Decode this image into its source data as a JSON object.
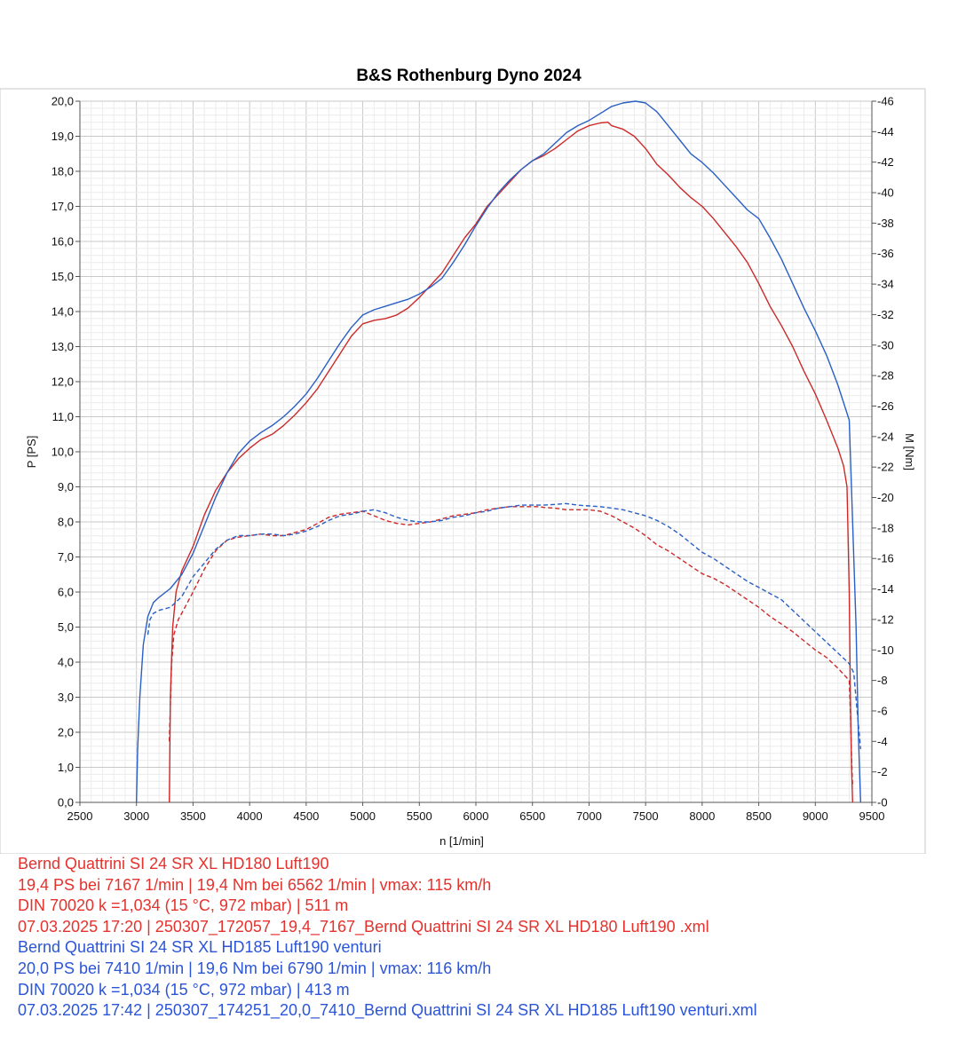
{
  "chart_data": {
    "type": "line",
    "title": "B&S Rothenburg Dyno 2024",
    "xlabel": "n [1/min]",
    "ylabel_left": "P [PS]",
    "ylabel_right": "M [Nm]",
    "xlim": [
      2500,
      9500
    ],
    "ylim_left": [
      0,
      20
    ],
    "ylim_right": [
      0,
      46
    ],
    "x_ticks": [
      "2500",
      "3000",
      "3500",
      "4000",
      "4500",
      "5000",
      "5500",
      "6000",
      "6500",
      "7000",
      "7500",
      "8000",
      "8500",
      "9000",
      "9500"
    ],
    "y_left_ticks": [
      "0,0",
      "1,0",
      "2,0",
      "3,0",
      "4,0",
      "5,0",
      "6,0",
      "7,0",
      "8,0",
      "9,0",
      "10,0",
      "11,0",
      "12,0",
      "13,0",
      "14,0",
      "15,0",
      "16,0",
      "17,0",
      "18,0",
      "19,0",
      "20,0"
    ],
    "y_right_ticks": [
      "0",
      "2",
      "4",
      "6",
      "8",
      "10",
      "12",
      "14",
      "16",
      "18",
      "20",
      "22",
      "24",
      "26",
      "28",
      "30",
      "32",
      "34",
      "36",
      "38",
      "40",
      "42",
      "44",
      "46"
    ],
    "grid": true,
    "series": [
      {
        "name": "Bernd Quattrini SI 24 SR XL HD180 Luft190",
        "quantity": "P [PS]",
        "axis": "left",
        "style": "solid",
        "color": "#cc2a2a",
        "x": [
          3290,
          3300,
          3320,
          3350,
          3400,
          3500,
          3600,
          3700,
          3800,
          3900,
          4000,
          4100,
          4200,
          4300,
          4400,
          4500,
          4600,
          4700,
          4800,
          4900,
          5000,
          5100,
          5200,
          5300,
          5400,
          5500,
          5600,
          5700,
          5800,
          5900,
          6000,
          6100,
          6200,
          6300,
          6400,
          6500,
          6600,
          6700,
          6800,
          6900,
          7000,
          7100,
          7167,
          7200,
          7300,
          7400,
          7500,
          7600,
          7700,
          7800,
          7900,
          8000,
          8100,
          8200,
          8300,
          8400,
          8500,
          8600,
          8700,
          8800,
          8900,
          9000,
          9100,
          9200,
          9250,
          9280,
          9300,
          9310,
          9320,
          9330
        ],
        "y": [
          0,
          3,
          5,
          6,
          6.6,
          7.3,
          8.2,
          8.9,
          9.4,
          9.8,
          10.1,
          10.35,
          10.5,
          10.75,
          11.05,
          11.4,
          11.8,
          12.3,
          12.8,
          13.3,
          13.65,
          13.75,
          13.8,
          13.9,
          14.1,
          14.4,
          14.75,
          15.1,
          15.6,
          16.1,
          16.5,
          17.0,
          17.35,
          17.7,
          18.05,
          18.3,
          18.45,
          18.65,
          18.9,
          19.15,
          19.3,
          19.38,
          19.4,
          19.3,
          19.2,
          19.0,
          18.65,
          18.2,
          17.9,
          17.55,
          17.25,
          17.0,
          16.65,
          16.25,
          15.85,
          15.4,
          14.8,
          14.15,
          13.6,
          13.0,
          12.3,
          11.65,
          10.9,
          10.1,
          9.6,
          9.0,
          6.0,
          3.0,
          1.0,
          0
        ]
      },
      {
        "name": "Bernd Quattrini SI 24 SR XL HD180 Luft190",
        "quantity": "M [Nm]",
        "axis": "right",
        "style": "dashed",
        "color": "#cc2a2a",
        "x": [
          3290,
          3310,
          3330,
          3370,
          3400,
          3500,
          3600,
          3700,
          3800,
          3900,
          4000,
          4100,
          4200,
          4300,
          4400,
          4500,
          4600,
          4700,
          4800,
          4900,
          5000,
          5100,
          5200,
          5300,
          5400,
          5500,
          5600,
          5700,
          5800,
          5900,
          6000,
          6100,
          6200,
          6300,
          6400,
          6500,
          6562,
          6600,
          6700,
          6800,
          6900,
          7000,
          7100,
          7200,
          7300,
          7400,
          7500,
          7600,
          7700,
          7800,
          7900,
          8000,
          8100,
          8200,
          8300,
          8400,
          8500,
          8600,
          8700,
          8800,
          8900,
          9000,
          9100,
          9200,
          9300,
          9310,
          9320,
          9330
        ],
        "y": [
          4,
          9,
          11,
          12,
          12.4,
          13.8,
          15.3,
          16.5,
          17.2,
          17.4,
          17.5,
          17.6,
          17.5,
          17.5,
          17.7,
          17.9,
          18.3,
          18.7,
          18.9,
          19.0,
          19.1,
          18.8,
          18.5,
          18.3,
          18.2,
          18.3,
          18.4,
          18.6,
          18.8,
          18.9,
          19.0,
          19.2,
          19.3,
          19.4,
          19.4,
          19.4,
          19.4,
          19.35,
          19.3,
          19.2,
          19.2,
          19.2,
          19.1,
          18.8,
          18.4,
          18.0,
          17.5,
          16.9,
          16.5,
          16.0,
          15.5,
          15.0,
          14.7,
          14.3,
          13.8,
          13.3,
          12.8,
          12.2,
          11.7,
          11.2,
          10.6,
          10.0,
          9.5,
          8.8,
          8.0,
          6.0,
          3.0,
          1.0
        ]
      },
      {
        "name": "Bernd Quattrini SI 24 SR XL HD185 Luft190 venturi",
        "quantity": "P [PS]",
        "axis": "left",
        "style": "solid",
        "color": "#2a5fc4",
        "x": [
          3000,
          3010,
          3030,
          3060,
          3100,
          3150,
          3200,
          3300,
          3400,
          3500,
          3600,
          3700,
          3800,
          3900,
          4000,
          4100,
          4200,
          4300,
          4400,
          4500,
          4600,
          4700,
          4800,
          4900,
          5000,
          5100,
          5200,
          5300,
          5400,
          5500,
          5600,
          5700,
          5800,
          5900,
          6000,
          6100,
          6200,
          6300,
          6400,
          6500,
          6600,
          6700,
          6800,
          6900,
          7000,
          7100,
          7200,
          7300,
          7410,
          7500,
          7600,
          7700,
          7800,
          7900,
          8000,
          8100,
          8200,
          8300,
          8400,
          8500,
          8600,
          8700,
          8800,
          8900,
          9000,
          9100,
          9200,
          9300,
          9330,
          9360,
          9380,
          9400
        ],
        "y": [
          0,
          1.5,
          3,
          4.5,
          5.3,
          5.7,
          5.85,
          6.1,
          6.5,
          7.1,
          7.9,
          8.7,
          9.4,
          9.95,
          10.3,
          10.55,
          10.75,
          11.0,
          11.3,
          11.65,
          12.1,
          12.6,
          13.1,
          13.55,
          13.9,
          14.05,
          14.15,
          14.25,
          14.35,
          14.5,
          14.7,
          14.95,
          15.4,
          15.9,
          16.45,
          16.95,
          17.4,
          17.75,
          18.05,
          18.3,
          18.5,
          18.8,
          19.1,
          19.3,
          19.45,
          19.65,
          19.85,
          19.95,
          20.0,
          19.95,
          19.7,
          19.3,
          18.9,
          18.5,
          18.25,
          17.95,
          17.6,
          17.25,
          16.9,
          16.65,
          16.1,
          15.5,
          14.8,
          14.1,
          13.45,
          12.75,
          11.9,
          10.9,
          8.0,
          5.0,
          2.0,
          0
        ]
      },
      {
        "name": "Bernd Quattrini SI 24 SR XL HD185 Luft190 venturi",
        "quantity": "M [Nm]",
        "axis": "right",
        "style": "dashed",
        "color": "#2a5fc4",
        "x": [
          3100,
          3120,
          3150,
          3200,
          3300,
          3400,
          3500,
          3600,
          3700,
          3800,
          3900,
          4000,
          4100,
          4200,
          4300,
          4400,
          4500,
          4600,
          4700,
          4800,
          4900,
          5000,
          5100,
          5200,
          5300,
          5400,
          5500,
          5600,
          5700,
          5800,
          5900,
          6000,
          6100,
          6200,
          6300,
          6400,
          6500,
          6600,
          6700,
          6790,
          6800,
          6900,
          7000,
          7100,
          7200,
          7300,
          7400,
          7500,
          7600,
          7700,
          7800,
          7900,
          8000,
          8100,
          8200,
          8300,
          8400,
          8500,
          8600,
          8700,
          8800,
          8900,
          9000,
          9100,
          9200,
          9300,
          9340,
          9370,
          9400
        ],
        "y": [
          11,
          12,
          12.4,
          12.6,
          12.8,
          13.5,
          14.8,
          15.7,
          16.6,
          17.2,
          17.5,
          17.5,
          17.6,
          17.6,
          17.5,
          17.6,
          17.8,
          18.1,
          18.5,
          18.8,
          18.9,
          19.1,
          19.2,
          19.0,
          18.7,
          18.5,
          18.4,
          18.4,
          18.5,
          18.7,
          18.8,
          19.0,
          19.1,
          19.3,
          19.4,
          19.5,
          19.5,
          19.5,
          19.55,
          19.6,
          19.6,
          19.5,
          19.45,
          19.4,
          19.3,
          19.2,
          19.0,
          18.8,
          18.5,
          18.1,
          17.6,
          17.0,
          16.4,
          16.0,
          15.5,
          15.0,
          14.5,
          14.1,
          13.7,
          13.3,
          12.6,
          11.9,
          11.2,
          10.5,
          9.8,
          9.1,
          8.5,
          6.0,
          3.5
        ]
      }
    ]
  },
  "legend_lines": [
    {
      "text": "Bernd Quattrini SI 24 SR XL HD180 Luft190",
      "color": "#e5322d"
    },
    {
      "text": "19,4 PS bei 7167 1/min | 19,4 Nm bei 6562 1/min | vmax: 115 km/h",
      "color": "#e5322d"
    },
    {
      "text": "DIN 70020 k =1,034 (15 °C, 972 mbar) | 511 m",
      "color": "#e5322d"
    },
    {
      "text": "07.03.2025 17:20 | 250307_172057_19,4_7167_Bernd Quattrini SI 24 SR XL HD180 Luft190 .xml",
      "color": "#e5322d"
    },
    {
      "text": "Bernd Quattrini SI 24 SR XL HD185 Luft190 venturi",
      "color": "#2b55d6"
    },
    {
      "text": "20,0 PS bei 7410 1/min | 19,6 Nm bei 6790 1/min | vmax: 116 km/h",
      "color": "#2b55d6"
    },
    {
      "text": "DIN 70020 k =1,034 (15 °C, 972 mbar) | 413 m",
      "color": "#2b55d6"
    },
    {
      "text": "07.03.2025 17:42 | 250307_174251_20,0_7410_Bernd Quattrini SI 24 SR XL HD185 Luft190 venturi.xml",
      "color": "#2b55d6"
    }
  ]
}
